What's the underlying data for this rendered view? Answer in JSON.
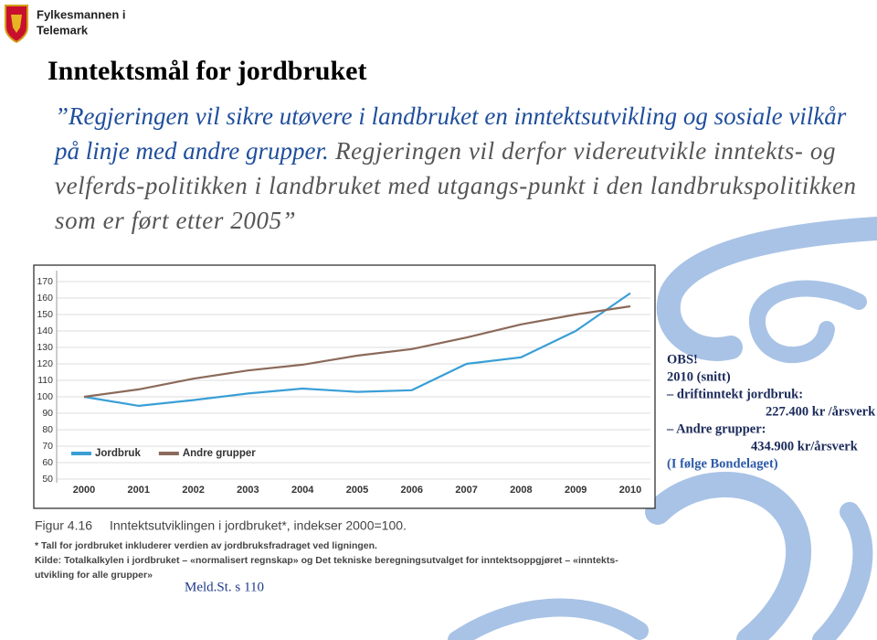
{
  "header": {
    "org_lines": [
      "Fylkesmannen i",
      "Telemark"
    ]
  },
  "title": "Inntektsmål for jordbruket",
  "quote": {
    "highlight": "”Regjeringen vil sikre utøvere i landbruket en inntektsutvikling og sosiale vilkår på linje med andre grupper.",
    "rest": " Regjeringen vil derfor videreutvikle inntekts- og velferds-politikken i landbruket med utgangs-punkt i den landbrukspolitikken som er ført etter 2005”"
  },
  "chart_data": {
    "type": "line",
    "categories": [
      "2000",
      "2001",
      "2002",
      "2003",
      "2004",
      "2005",
      "2006",
      "2007",
      "2008",
      "2009",
      "2010"
    ],
    "series": [
      {
        "name": "Jordbruk",
        "color": "#3a9fd6",
        "values": [
          100,
          94.5,
          98,
          102,
          105,
          103,
          104,
          120,
          124,
          140,
          163
        ]
      },
      {
        "name": "Andre grupper",
        "color": "#8b6a5a",
        "values": [
          100,
          104.5,
          111,
          116,
          119.5,
          125,
          129,
          136,
          144,
          150,
          155
        ]
      }
    ],
    "ylim": [
      50,
      170
    ],
    "yticks": [
      50,
      60,
      70,
      80,
      90,
      100,
      110,
      120,
      130,
      140,
      150,
      160,
      170
    ],
    "grid": true,
    "legend": "bottom-left"
  },
  "figure": {
    "label": "Figur 4.16",
    "caption": "Inntektsutviklingen i jordbruket*, indekser 2000=100.",
    "notes": [
      "*   Tall for jordbruket inkluderer verdien av jordbruksfradraget ved ligningen.",
      "Kilde: Totalkalkylen i jordbruket – «normalisert regnskap» og Det tekniske beregningsutvalget for inntektsoppgjøret – «inntekts-",
      "utvikling for alle grupper»"
    ]
  },
  "source": "Meld.St. s 110",
  "note": {
    "lines": [
      "OBS!",
      "2010 (snitt)",
      "– driftinntekt jordbruk:",
      "227.400 kr /årsverk",
      "– Andre grupper:",
      "434.900 kr/årsverk",
      "(I følge Bondelaget)"
    ]
  }
}
